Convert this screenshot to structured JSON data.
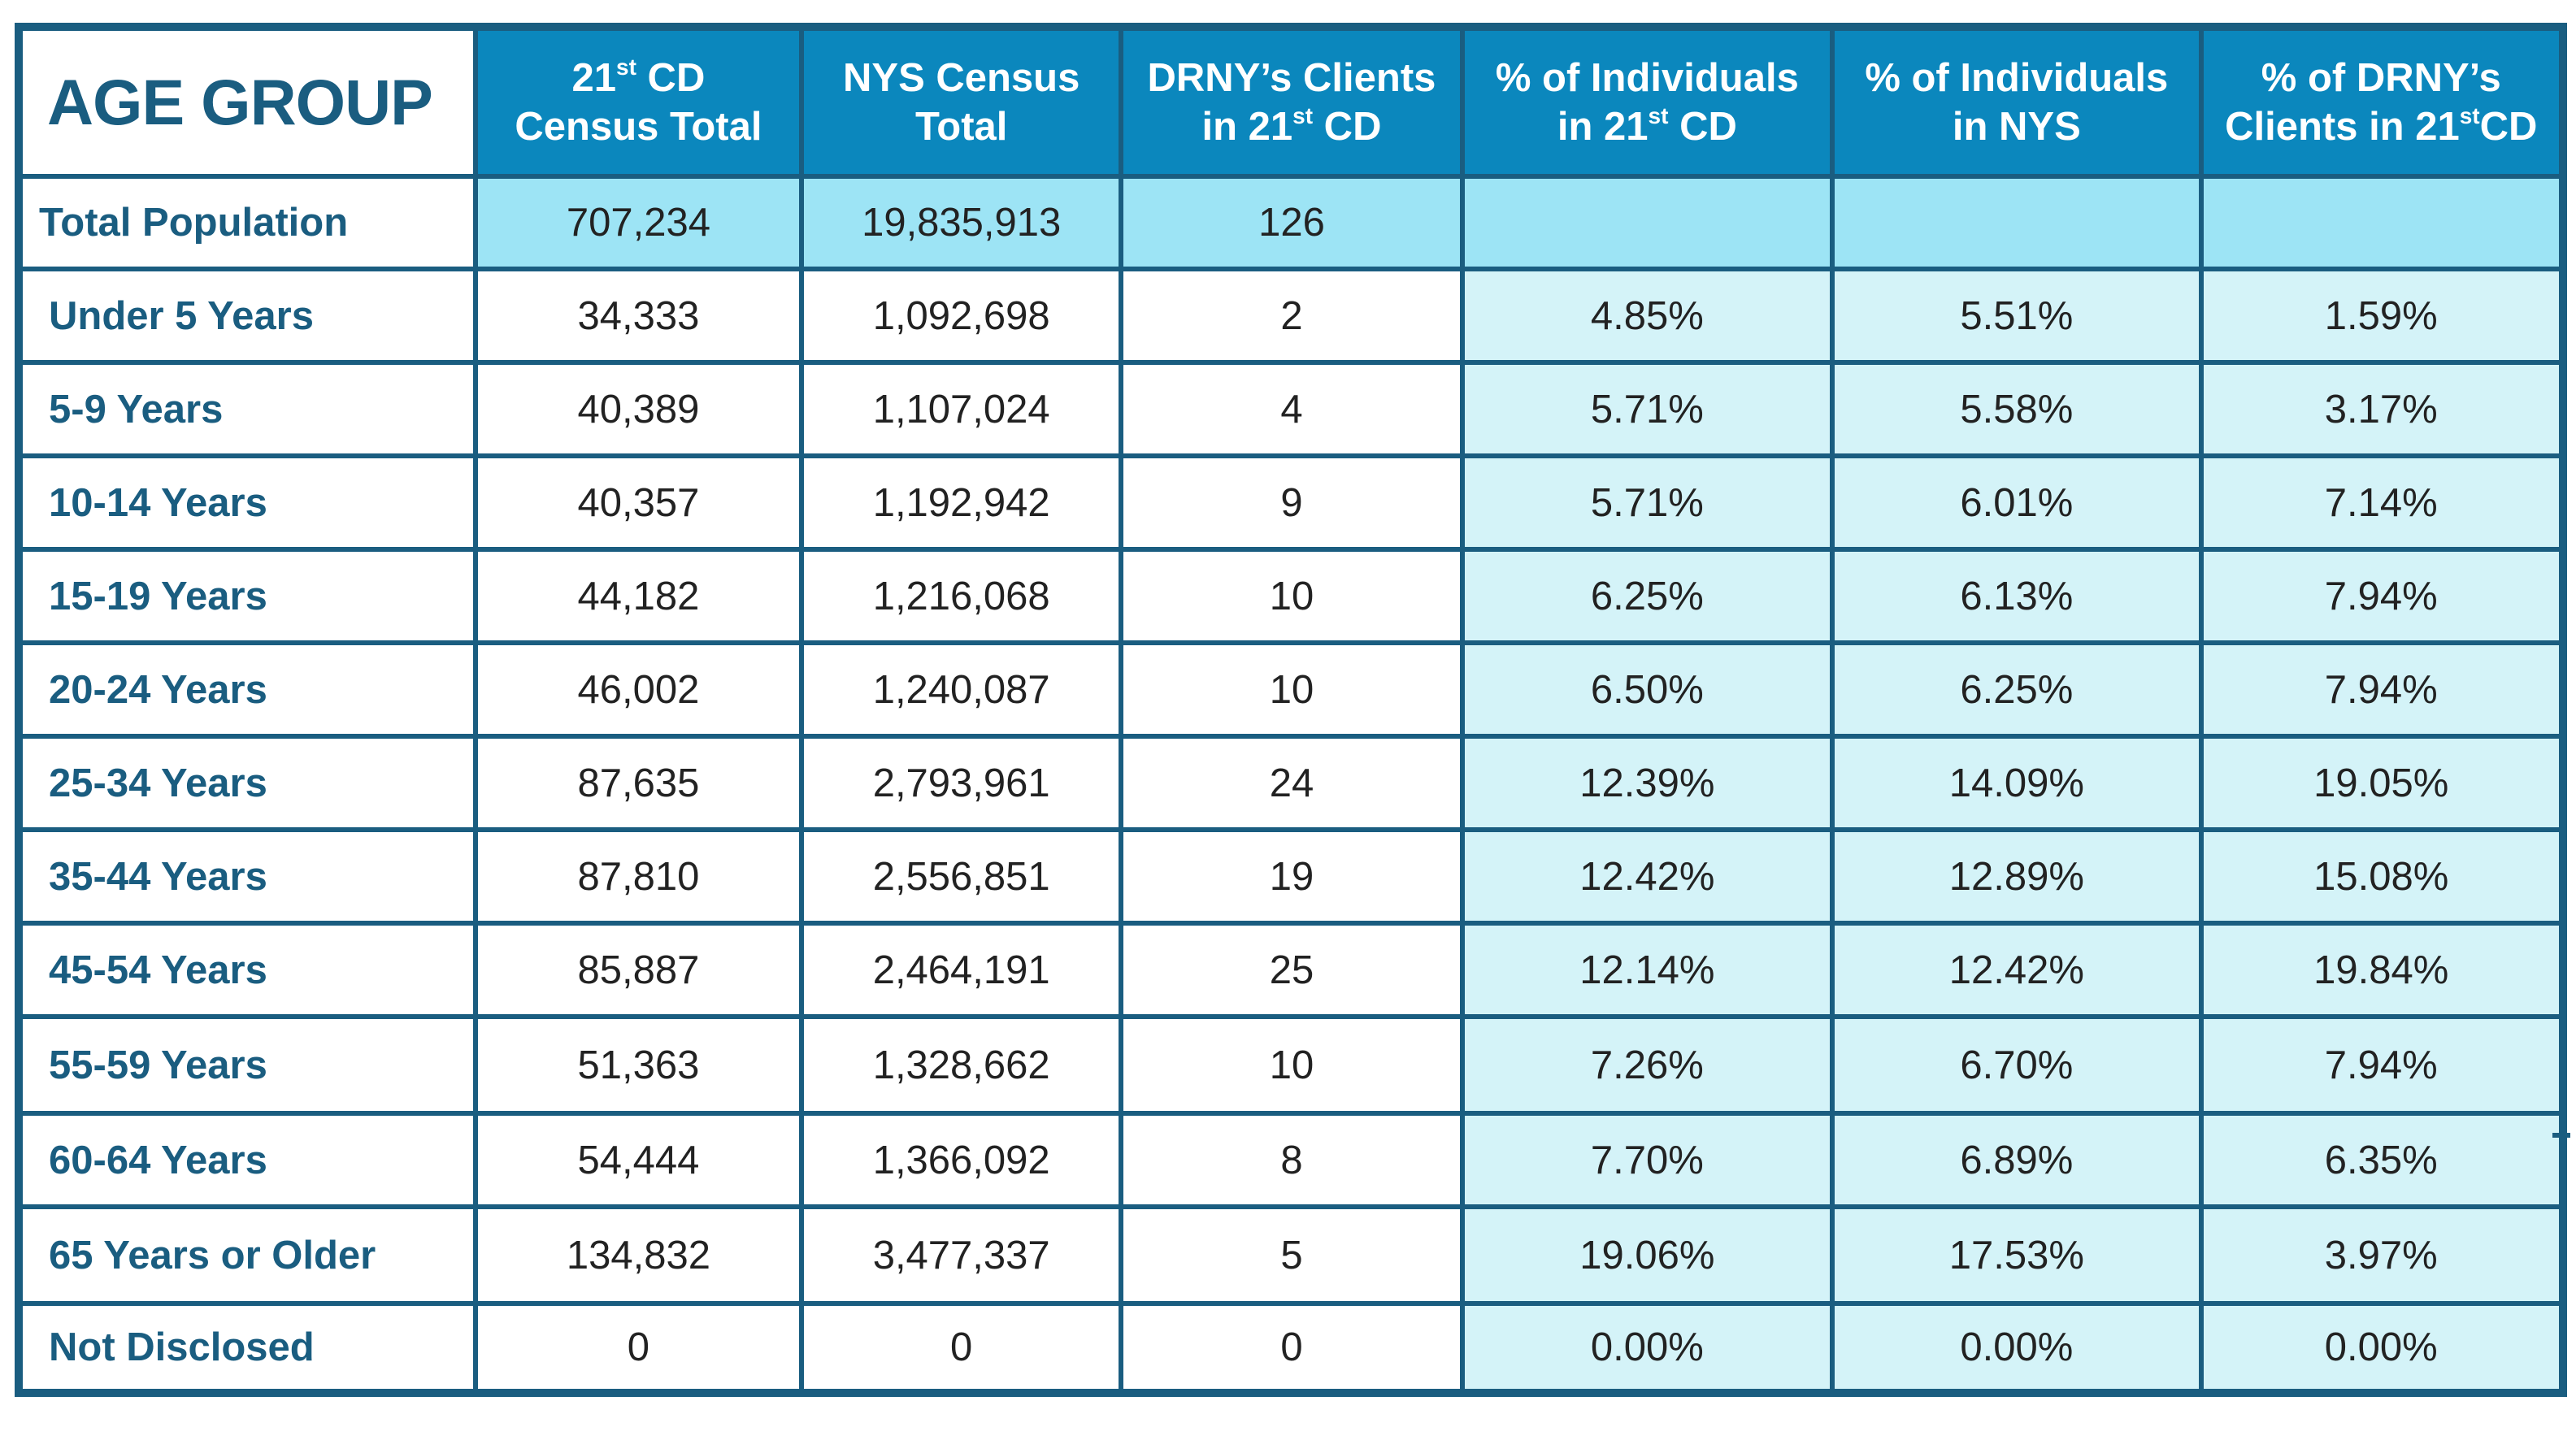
{
  "chart_data": {
    "type": "table",
    "corner_label": "AGE GROUP",
    "columns": [
      {
        "line1_pre": "21",
        "line1_sup": "st",
        "line1_post": " CD",
        "line2_pre": "Census Total",
        "line2_sup": "",
        "line2_post": ""
      },
      {
        "line1_pre": "NYS Census",
        "line1_sup": "",
        "line1_post": "",
        "line2_pre": "Total",
        "line2_sup": "",
        "line2_post": ""
      },
      {
        "line1_pre": "DRNY’s Clients",
        "line1_sup": "",
        "line1_post": "",
        "line2_pre": "in 21",
        "line2_sup": "st",
        "line2_post": " CD"
      },
      {
        "line1_pre": "% of Individuals",
        "line1_sup": "",
        "line1_post": "",
        "line2_pre": "in 21",
        "line2_sup": "st",
        "line2_post": " CD"
      },
      {
        "line1_pre": "% of Individuals",
        "line1_sup": "",
        "line1_post": "",
        "line2_pre": "in NYS",
        "line2_sup": "",
        "line2_post": ""
      },
      {
        "line1_pre": "% of DRNY’s",
        "line1_sup": "",
        "line1_post": "",
        "line2_pre": "Clients in 21",
        "line2_sup": "st",
        "line2_post": "CD"
      }
    ],
    "rows": [
      {
        "label": "Total Population",
        "values": [
          "707,234",
          "19,835,913",
          "126",
          "",
          "",
          ""
        ]
      },
      {
        "label": "Under 5 Years",
        "values": [
          "34,333",
          "1,092,698",
          "2",
          "4.85%",
          "5.51%",
          "1.59%"
        ]
      },
      {
        "label": "5-9 Years",
        "values": [
          "40,389",
          "1,107,024",
          "4",
          "5.71%",
          "5.58%",
          "3.17%"
        ]
      },
      {
        "label": "10-14 Years",
        "values": [
          "40,357",
          "1,192,942",
          "9",
          "5.71%",
          "6.01%",
          "7.14%"
        ]
      },
      {
        "label": "15-19 Years",
        "values": [
          "44,182",
          "1,216,068",
          "10",
          "6.25%",
          "6.13%",
          "7.94%"
        ]
      },
      {
        "label": "20-24 Years",
        "values": [
          "46,002",
          "1,240,087",
          "10",
          "6.50%",
          "6.25%",
          "7.94%"
        ]
      },
      {
        "label": "25-34 Years",
        "values": [
          "87,635",
          "2,793,961",
          "24",
          "12.39%",
          "14.09%",
          "19.05%"
        ]
      },
      {
        "label": "35-44 Years",
        "values": [
          "87,810",
          "2,556,851",
          "19",
          "12.42%",
          "12.89%",
          "15.08%"
        ]
      },
      {
        "label": "45-54 Years",
        "values": [
          "85,887",
          "2,464,191",
          "25",
          "12.14%",
          "12.42%",
          "19.84%"
        ]
      },
      {
        "label": "55-59 Years",
        "values": [
          "51,363",
          "1,328,662",
          "10",
          "7.26%",
          "6.70%",
          "7.94%"
        ]
      },
      {
        "label": "60-64 Years",
        "values": [
          "54,444",
          "1,366,092",
          "8",
          "7.70%",
          "6.89%",
          "6.35%"
        ]
      },
      {
        "label": "65 Years or Older",
        "values": [
          "134,832",
          "3,477,337",
          "5",
          "19.06%",
          "17.53%",
          "3.97%"
        ]
      },
      {
        "label": "Not Disclosed",
        "values": [
          "0",
          "0",
          "0",
          "0.00%",
          "0.00%",
          "0.00%"
        ]
      }
    ],
    "colors": {
      "header_bg": "#0b87bd",
      "border": "#1a5d80",
      "label_text": "#1a5d80",
      "total_row_bg": "#9de4f5",
      "percent_col_bg": "#d4f3f8"
    }
  }
}
